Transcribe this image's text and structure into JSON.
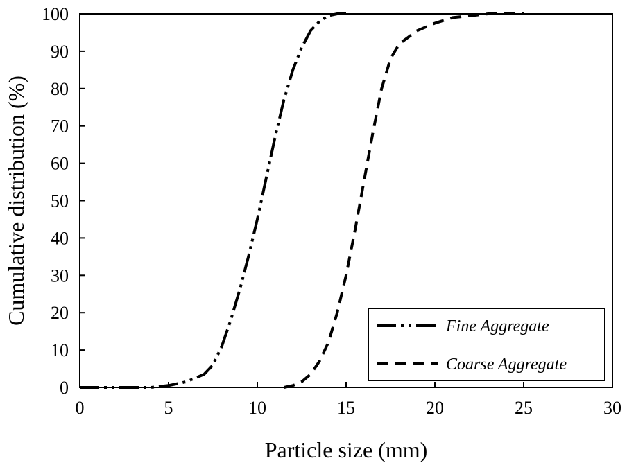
{
  "chart_data": {
    "type": "line",
    "title": "",
    "xlabel": "Particle size (mm)",
    "ylabel": "Cumulative distribution (%)",
    "xlim": [
      0,
      30
    ],
    "ylim": [
      0,
      100
    ],
    "xticks": [
      0,
      5,
      10,
      15,
      20,
      25,
      30
    ],
    "yticks": [
      0,
      10,
      20,
      30,
      40,
      50,
      60,
      70,
      80,
      90,
      100
    ],
    "grid": false,
    "legend_position": "bottom-right",
    "series": [
      {
        "name": "Fine Aggregate",
        "dash": "dash-dot-dot",
        "x": [
          0,
          1,
          2,
          3,
          4,
          5,
          6,
          7,
          7.5,
          8,
          8.5,
          9,
          9.5,
          10,
          10.5,
          11,
          11.5,
          12,
          12.5,
          13,
          13.5,
          14,
          14.5,
          15
        ],
        "y": [
          0,
          0,
          0,
          0,
          0,
          0.5,
          1.5,
          3.5,
          6,
          11,
          18,
          26,
          35,
          45,
          56,
          67,
          77,
          85,
          91,
          95.5,
          98,
          99.5,
          100,
          100
        ]
      },
      {
        "name": "Coarse Aggregate",
        "dash": "dashed",
        "x": [
          11.5,
          12,
          12.5,
          13,
          13.5,
          14,
          14.5,
          15,
          15.5,
          16,
          16.5,
          17,
          17.5,
          18,
          19,
          20,
          21,
          22,
          23,
          24,
          25
        ],
        "y": [
          0,
          0.5,
          1.5,
          3.5,
          7,
          12,
          20,
          30,
          42,
          55,
          68,
          80,
          88,
          92,
          95.5,
          97.5,
          99,
          99.5,
          100,
          100,
          100
        ]
      }
    ]
  }
}
